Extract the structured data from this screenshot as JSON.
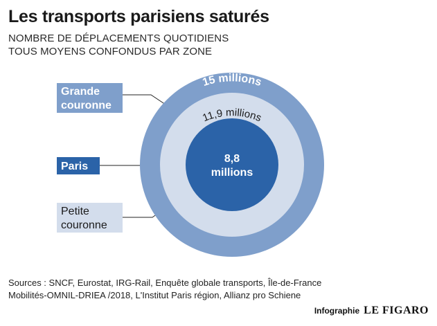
{
  "title": "Les transports parisiens saturés",
  "subtitle": [
    "NOMBRE DE DÉPLACEMENTS QUOTIDIENS",
    "TOUS MOYENS CONFONDUS PAR ZONE"
  ],
  "chart_data": {
    "type": "nested-circles",
    "unit": "millions de déplacements quotidiens",
    "series": [
      {
        "zone": "Grande couronne",
        "label_lines": [
          "Grande",
          "couronne"
        ],
        "value": 15,
        "value_label": "15 millions",
        "color": "#7f9fcb",
        "label_bg": "#7f9fcb",
        "label_color": "#ffffff"
      },
      {
        "zone": "Petite couronne",
        "label_lines": [
          "Petite",
          "couronne"
        ],
        "value": 11.9,
        "value_label": "11,9 millions",
        "color": "#d3ddec",
        "label_bg": "#d3ddec",
        "label_color": "#1a1a1a"
      },
      {
        "zone": "Paris",
        "label_lines": [
          "Paris"
        ],
        "value": 8.8,
        "value_label": "8,8 millions",
        "value_label_lines": [
          "8,8",
          "millions"
        ],
        "color": "#2b63a8",
        "label_bg": "#2b63a8",
        "label_color": "#ffffff"
      }
    ]
  },
  "sources": [
    "Sources : SNCF, Eurostat, IRG-Rail, Enquête globale transports, Île-de-France",
    "Mobilités-OMNIL-DRIEA /2018, L'Institut Paris région, Allianz pro Schiene"
  ],
  "credit": {
    "label": "Infographie",
    "logo": "LE FIGARO"
  }
}
